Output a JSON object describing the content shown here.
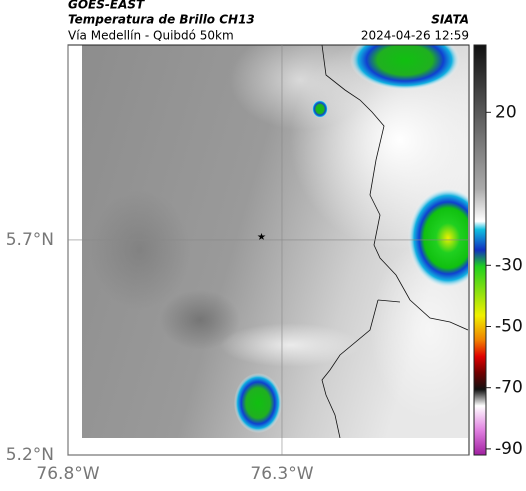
{
  "header": {
    "title": "GOES-EAST",
    "subtitle": "Temperatura de Brillo CH13",
    "route": "Vía Medellín - Quibdó 50km",
    "source": "SIATA",
    "timestamp": "2024-04-26 12:59"
  },
  "map": {
    "xlim": [
      -76.8,
      -75.863
    ],
    "ylim": [
      5.2,
      6.153
    ],
    "xticks": [
      {
        "value": -76.8,
        "label": "76.8°W"
      },
      {
        "value": -76.3,
        "label": "76.3°W"
      }
    ],
    "yticks": [
      {
        "value": 5.7,
        "label": "5.7°N"
      },
      {
        "value": 5.2,
        "label": "5.2°N"
      }
    ],
    "grid": true
  },
  "colorbar": {
    "lim": [
      -92,
      42
    ],
    "ticks": [
      20,
      -30,
      -50,
      -70,
      -90
    ]
  }
}
